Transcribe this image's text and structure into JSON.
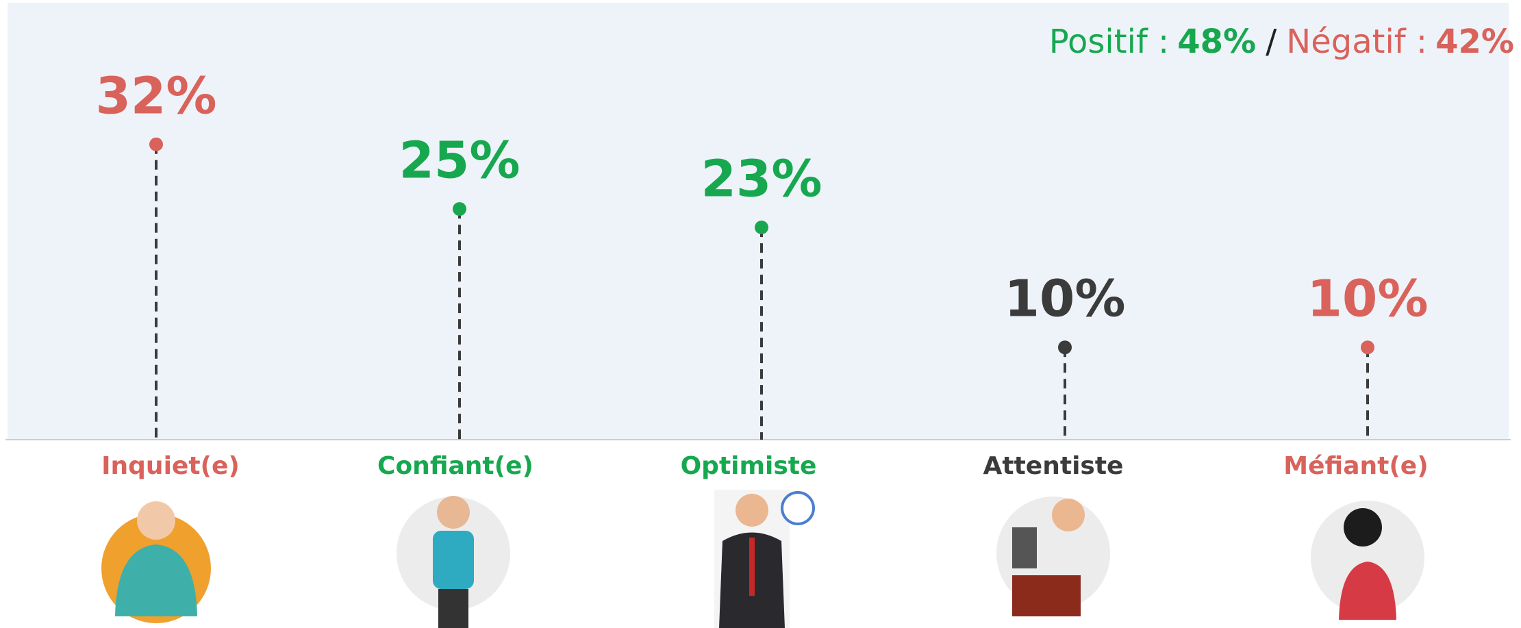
{
  "chart_data": {
    "type": "lollipop",
    "categories": [
      "Inquiet(e)",
      "Confiant(e)",
      "Optimiste",
      "Attentiste",
      "Méfiant(e)"
    ],
    "values": [
      32,
      25,
      23,
      10,
      10
    ],
    "value_labels": [
      "32%",
      "25%",
      "23%",
      "10%",
      "10%"
    ],
    "colors": [
      "#d9625b",
      "#17a84f",
      "#17a84f",
      "#3b3b3b",
      "#d9625b"
    ],
    "summary": [
      {
        "name": "Positif :",
        "value": 48,
        "value_label": "48%",
        "color": "#17a84f"
      },
      {
        "name": "Négatif :",
        "value": 42,
        "value_label": "42%",
        "color": "#d9625b"
      }
    ],
    "separator": "/"
  }
}
